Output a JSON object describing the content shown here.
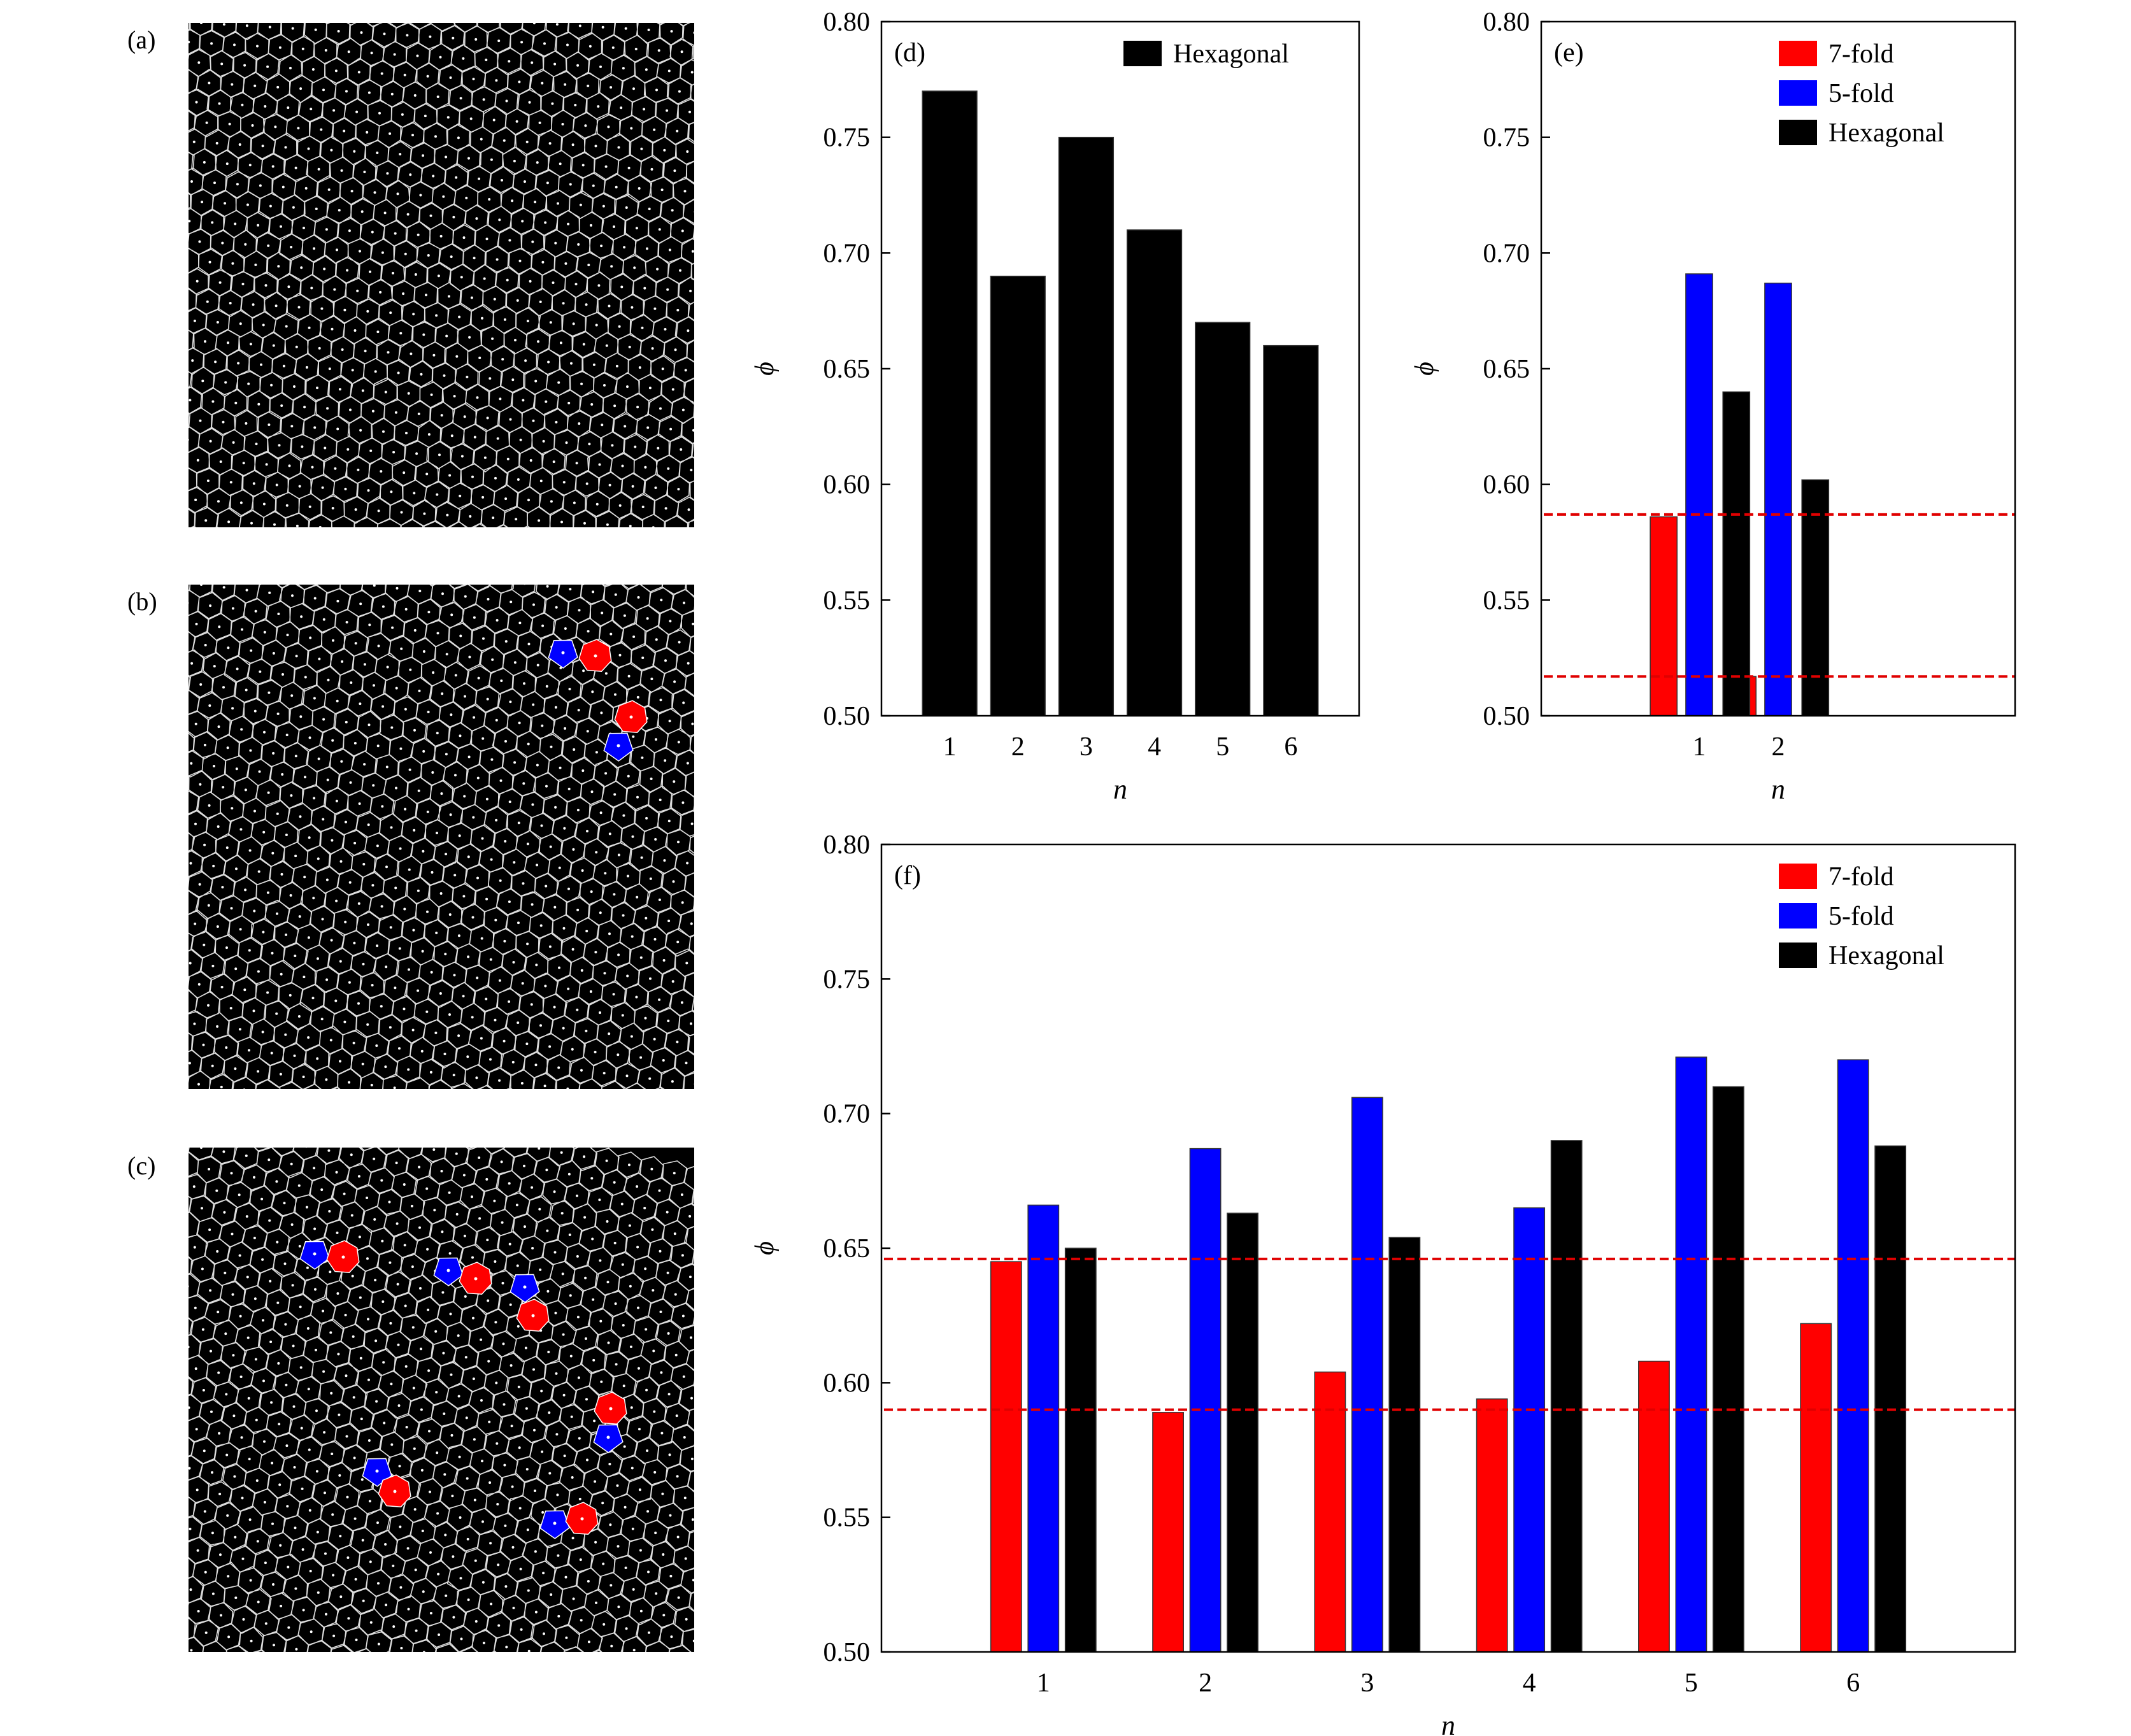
{
  "panels": {
    "a": {
      "label": "(a)"
    },
    "b": {
      "label": "(b)"
    },
    "c": {
      "label": "(c)"
    }
  },
  "colors": {
    "seven_fold": "#ff0000",
    "five_fold": "#0000ff",
    "hexagonal": "#000000",
    "reference_line": "#e00000"
  },
  "chart_data": [
    {
      "id": "d",
      "type": "bar",
      "panel_label": "(d)",
      "categories": [
        "1",
        "2",
        "3",
        "4",
        "5",
        "6"
      ],
      "x": [
        1,
        2,
        3,
        4,
        5,
        6
      ],
      "series": [
        {
          "name": "Hexagonal",
          "color": "#000000",
          "values": [
            0.77,
            0.69,
            0.75,
            0.71,
            0.67,
            0.66
          ]
        }
      ],
      "xlabel": "n",
      "ylabel": "ϕ",
      "ylim": [
        0.5,
        0.8
      ],
      "xlim": [
        0,
        7
      ],
      "yticks": [
        "0.50",
        "0.55",
        "0.60",
        "0.65",
        "0.70",
        "0.75",
        "0.80"
      ],
      "reference_lines": [],
      "legend": "top-right",
      "grid": false
    },
    {
      "id": "e",
      "type": "bar",
      "panel_label": "(e)",
      "categories": [
        "1",
        "2"
      ],
      "x": [
        1,
        2
      ],
      "series": [
        {
          "name": "7-fold",
          "color": "#ff0000",
          "values": [
            0.586,
            0.517
          ]
        },
        {
          "name": "5-fold",
          "color": "#0000ff",
          "values": [
            0.691,
            0.687
          ]
        },
        {
          "name": "Hexagonal",
          "color": "#000000",
          "values": [
            0.64,
            0.602
          ]
        }
      ],
      "xlabel": "n",
      "ylabel": "ϕ",
      "ylim": [
        0.5,
        0.8
      ],
      "xlim": [
        -1,
        5
      ],
      "yticks": [
        "0.50",
        "0.55",
        "0.60",
        "0.65",
        "0.70",
        "0.75",
        "0.80"
      ],
      "reference_lines": [
        0.587,
        0.517
      ],
      "legend": "top-right",
      "grid": false
    },
    {
      "id": "f",
      "type": "bar",
      "panel_label": "(f)",
      "categories": [
        "1",
        "2",
        "3",
        "4",
        "5",
        "6"
      ],
      "x": [
        1,
        2,
        3,
        4,
        5,
        6
      ],
      "series": [
        {
          "name": "7-fold",
          "color": "#ff0000",
          "values": [
            0.645,
            0.589,
            0.604,
            0.594,
            0.608,
            0.622
          ]
        },
        {
          "name": "5-fold",
          "color": "#0000ff",
          "values": [
            0.666,
            0.687,
            0.706,
            0.665,
            0.721,
            0.72
          ]
        },
        {
          "name": "Hexagonal",
          "color": "#000000",
          "values": [
            0.65,
            0.663,
            0.654,
            0.69,
            0.71,
            0.688
          ]
        }
      ],
      "xlabel": "n",
      "ylabel": "ϕ",
      "ylim": [
        0.5,
        0.8
      ],
      "xlim": [
        0,
        7
      ],
      "yticks": [
        "0.50",
        "0.55",
        "0.60",
        "0.65",
        "0.70",
        "0.75",
        "0.80"
      ],
      "reference_lines": [
        0.646,
        0.59
      ],
      "legend": "top-right",
      "grid": false
    }
  ]
}
